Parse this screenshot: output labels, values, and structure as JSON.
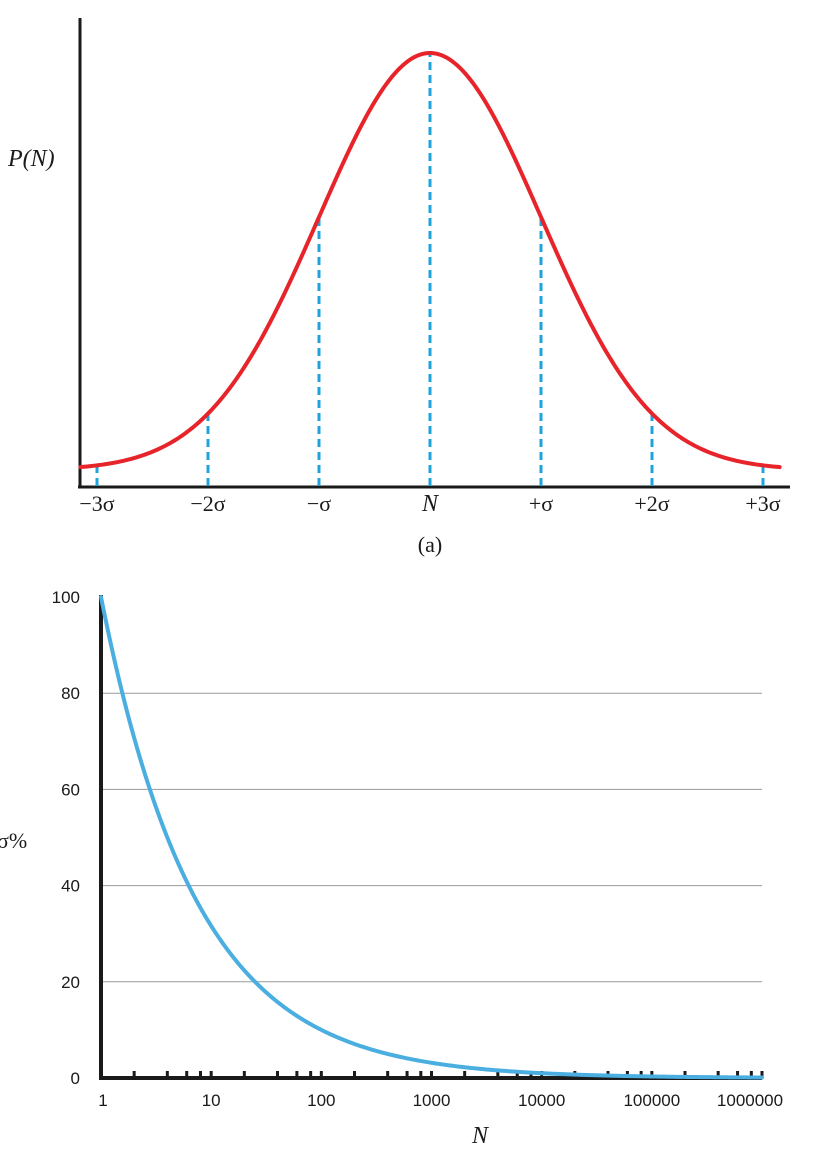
{
  "chart_data": [
    {
      "type": "line",
      "panel_label": "(a)",
      "title": "",
      "xlabel": "",
      "ylabel": "P(N)",
      "grid": false,
      "x_tick_labels": [
        "−3σ",
        "−2σ",
        "−σ",
        "N",
        "+σ",
        "+2σ",
        "+3σ"
      ],
      "x_tick_italic": [
        false,
        false,
        false,
        true,
        false,
        false,
        false
      ],
      "x_range_sigma": [
        -3.15,
        3.15
      ],
      "series": [
        {
          "curve": "normal distribution",
          "mean_sigma": 0,
          "std_sigma": 1,
          "color": "#e8242b"
        }
      ],
      "markers": {
        "positions_sigma": [
          -3,
          -2,
          -1,
          0,
          1,
          2,
          3
        ],
        "style": "dashed",
        "color": "#1fa3dc"
      },
      "colors": {
        "curve": "#e8242b",
        "markers": "#1fa3dc",
        "axis": "#1a1a1a"
      }
    },
    {
      "type": "line",
      "title": "",
      "xlabel": "N",
      "ylabel": "σ%",
      "x_scale": "log",
      "xlim": [
        1,
        1000000
      ],
      "ylim": [
        0,
        100
      ],
      "grid": true,
      "x_tick_labels": [
        "1",
        "10",
        "100",
        "1000",
        "10000",
        "100000",
        "1000000"
      ],
      "y_tick_labels": [
        "0",
        "20",
        "40",
        "60",
        "80",
        "100"
      ],
      "y_ticks": [
        0,
        20,
        40,
        60,
        80,
        100
      ],
      "series": [
        {
          "color": "#4aaee0",
          "formula": "sigma% = 100/sqrt(N)",
          "x": [
            1,
            2,
            3,
            5,
            10,
            20,
            30,
            50,
            100,
            200,
            300,
            500,
            1000,
            10000,
            100000,
            1000000
          ],
          "y": [
            100,
            70.7,
            57.7,
            44.7,
            31.6,
            22.4,
            18.3,
            14.1,
            10.0,
            7.1,
            5.8,
            4.5,
            3.2,
            1.0,
            0.3,
            0.1
          ]
        }
      ],
      "colors": {
        "curve": "#4aaee0",
        "grid": "#9a9a9a",
        "axis": "#1a1a1a"
      }
    }
  ]
}
